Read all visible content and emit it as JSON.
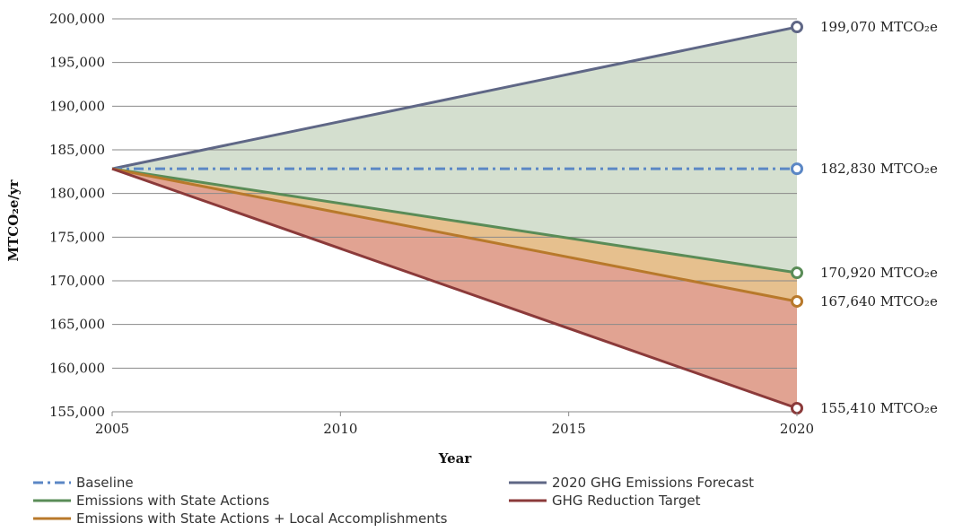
{
  "chart_data": {
    "type": "line",
    "xlabel": "Year",
    "ylabel": "MTCO₂e/yr",
    "xlim": [
      2005,
      2020
    ],
    "ylim": [
      155000,
      200000
    ],
    "x_ticks": [
      "2005",
      "2010",
      "2015",
      "2020"
    ],
    "y_ticks": [
      "155,000",
      "160,000",
      "165,000",
      "170,000",
      "175,000",
      "180,000",
      "185,000",
      "190,000",
      "195,000",
      "200,000"
    ],
    "grid": "horizontal",
    "legend_position": "bottom",
    "colors": {
      "forecast_fill": "#d4dfcf",
      "state_fill": "#e6c08e",
      "target_fill": "#e1a392"
    },
    "series": [
      {
        "name": "Baseline",
        "x": [
          2005,
          2020
        ],
        "values": [
          182830,
          182830
        ],
        "color": "#5b87c5",
        "dash": "dashdot",
        "end_label": "182,830 MTCO₂e"
      },
      {
        "name": "2020 GHG Emissions Forecast",
        "x": [
          2005,
          2020
        ],
        "values": [
          182830,
          199070
        ],
        "color": "#5f6786",
        "dash": "solid",
        "end_label": "199,070 MTCO₂e"
      },
      {
        "name": "Emissions with State Actions",
        "x": [
          2005,
          2020
        ],
        "values": [
          182830,
          170920
        ],
        "color": "#5a8c57",
        "dash": "solid",
        "end_label": "170,920 MTCO₂e"
      },
      {
        "name": "Emissions with State Actions + Local Accomplishments",
        "x": [
          2005,
          2020
        ],
        "values": [
          182830,
          167640
        ],
        "color": "#b8792b",
        "dash": "solid",
        "end_label": "167,640 MTCO₂e"
      },
      {
        "name": "GHG Reduction Target",
        "x": [
          2005,
          2020
        ],
        "values": [
          182830,
          155410
        ],
        "color": "#8b3a3a",
        "dash": "solid",
        "end_label": "155,410 MTCO₂e"
      }
    ],
    "legend_order": [
      0,
      1,
      2,
      4,
      3
    ]
  }
}
